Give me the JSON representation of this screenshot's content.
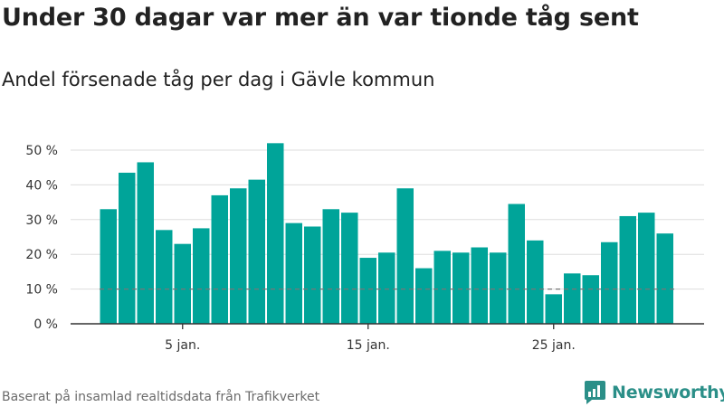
{
  "title": "Under 30 dagar var mer än var tionde tåg sent",
  "subtitle": "Andel försenade tåg per dag i Gävle kommun",
  "footer": "Baserat på insamlad realtidsdata från Trafikverket",
  "brand": "Newsworthy",
  "colors": {
    "bar": "#00a499",
    "brand": "#2b8f88",
    "reference_line": "#777777",
    "grid": "#dddddd"
  },
  "chart_data": {
    "type": "bar",
    "x": [
      1,
      2,
      3,
      4,
      5,
      6,
      7,
      8,
      9,
      10,
      11,
      12,
      13,
      14,
      15,
      16,
      17,
      18,
      19,
      20,
      21,
      22,
      23,
      24,
      25,
      26,
      27,
      28,
      29,
      30,
      31
    ],
    "values": [
      33,
      43.5,
      46.5,
      27,
      23,
      27.5,
      37,
      39,
      41.5,
      52,
      29,
      28,
      33,
      32,
      19,
      20.5,
      39,
      16,
      21,
      20.5,
      22,
      20.5,
      34.5,
      24,
      8.5,
      14.5,
      14,
      23.5,
      31,
      32,
      26
    ],
    "x_ticks": [
      {
        "value": 5,
        "label": "5 jan."
      },
      {
        "value": 15,
        "label": "15 jan."
      },
      {
        "value": 25,
        "label": "25 jan."
      }
    ],
    "y_ticks": [
      {
        "value": 0,
        "label": "0 %"
      },
      {
        "value": 10,
        "label": "10 %"
      },
      {
        "value": 20,
        "label": "20 %"
      },
      {
        "value": 30,
        "label": "30 %"
      },
      {
        "value": 40,
        "label": "40 %"
      },
      {
        "value": 50,
        "label": "50 %"
      }
    ],
    "ylim": [
      0,
      55
    ],
    "reference_line": 10,
    "grid": true,
    "title": "",
    "xlabel": "",
    "ylabel": ""
  }
}
